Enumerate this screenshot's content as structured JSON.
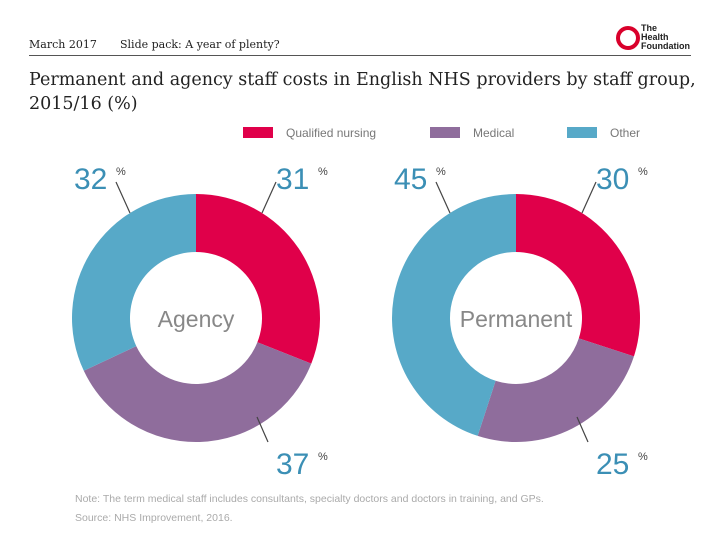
{
  "header": {
    "date": "March 2017",
    "slide_pack": "Slide pack: A year of plenty?",
    "logo_lines": [
      "The",
      "Health",
      "Foundation"
    ]
  },
  "title_lines": [
    "Permanent and agency staff costs in English NHS providers by staff group,",
    "2015/16 (%)"
  ],
  "colors": {
    "qualified_nursing": "#e0004a",
    "medical": "#8f6d9c",
    "other": "#57a9c8",
    "pct_text": "#3b8fb5",
    "logo_red": "#d9002b"
  },
  "chart_data": {
    "type": "pie",
    "variant": "donut",
    "legend": [
      "Qualified nursing",
      "Medical",
      "Other"
    ],
    "legend_position": "top",
    "charts": [
      {
        "center_label": "Agency",
        "slices": [
          {
            "category": "Qualified nursing",
            "value": 31,
            "label": "31"
          },
          {
            "category": "Medical",
            "value": 37,
            "label": "37"
          },
          {
            "category": "Other",
            "value": 32,
            "label": "32"
          }
        ]
      },
      {
        "center_label": "Permanent",
        "slices": [
          {
            "category": "Qualified nursing",
            "value": 30,
            "label": "30"
          },
          {
            "category": "Medical",
            "value": 25,
            "label": "25"
          },
          {
            "category": "Other",
            "value": 45,
            "label": "45"
          }
        ]
      }
    ],
    "percent_symbol": "%"
  },
  "footer": {
    "note": "Note: The term medical staff includes consultants, specialty doctors and doctors in training, and GPs.",
    "source": "Source: NHS Improvement, 2016."
  }
}
